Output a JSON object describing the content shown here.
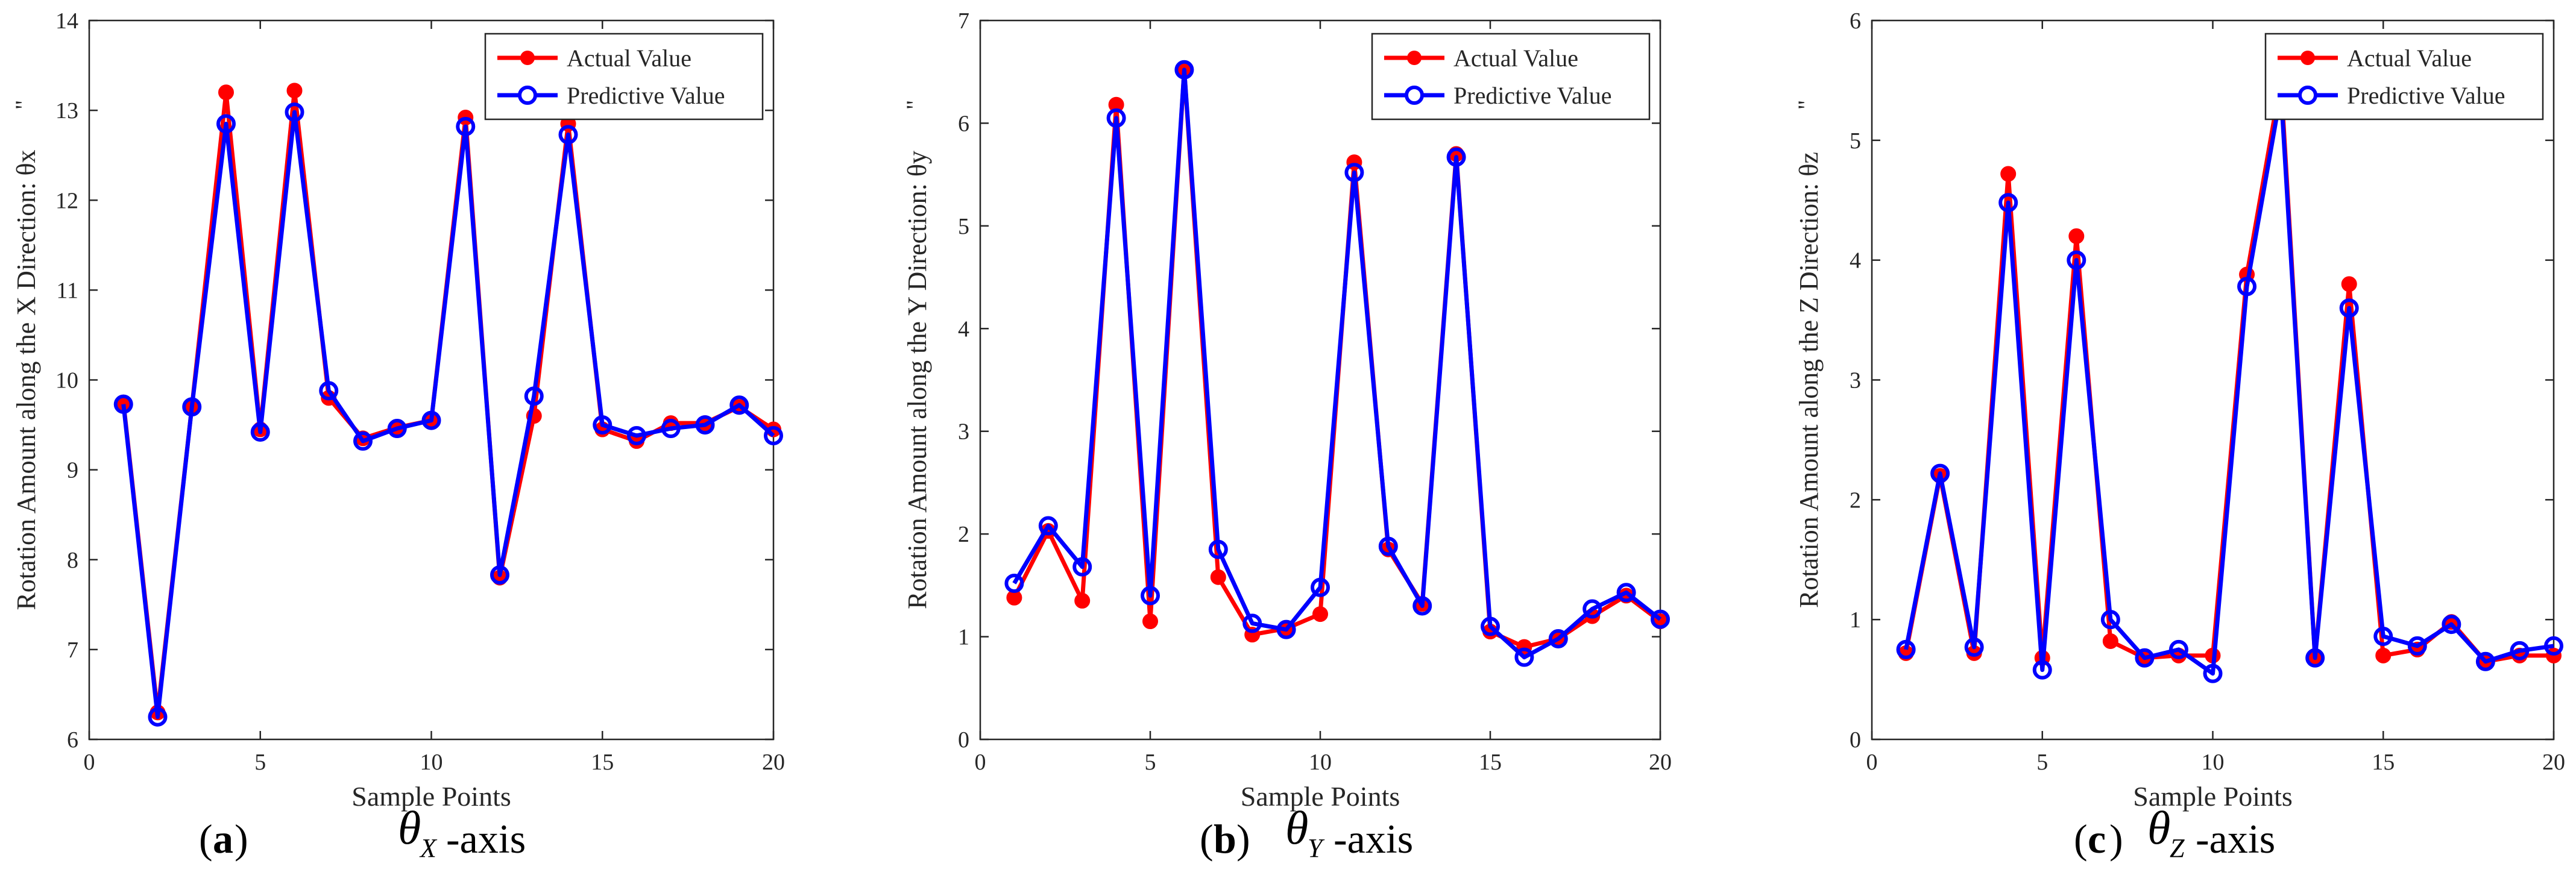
{
  "figure": {
    "panels": [
      {
        "label": "a",
        "symbol": "θ",
        "subscript": "X",
        "suffix": "-axis"
      },
      {
        "label": "b",
        "symbol": "θ",
        "subscript": "Y",
        "suffix": "-axis"
      },
      {
        "label": "c",
        "symbol": "θ",
        "subscript": "Z",
        "suffix": "-axis"
      }
    ]
  },
  "colors": {
    "actual": "#ff0000",
    "predictive": "#0000ff",
    "axis": "#262626",
    "background": "#ffffff"
  },
  "chart_data": [
    {
      "type": "line",
      "title": "",
      "xlabel": "Sample Points",
      "ylabel": "Rotation Amount along the X Direction: θx",
      "unit_mark": "\"",
      "xlim": [
        0,
        20
      ],
      "ylim": [
        6,
        14
      ],
      "xticks": [
        0,
        5,
        10,
        15,
        20
      ],
      "yticks": [
        6,
        7,
        8,
        9,
        10,
        11,
        12,
        13,
        14
      ],
      "legend_position": "top-right",
      "x": [
        1,
        2,
        3,
        4,
        5,
        6,
        7,
        8,
        9,
        10,
        11,
        12,
        13,
        14,
        15,
        16,
        17,
        18,
        19,
        20
      ],
      "series": [
        {
          "name": "Actual Value",
          "marker": "filled-circle",
          "values": [
            9.75,
            6.3,
            9.7,
            13.2,
            9.45,
            13.22,
            9.8,
            9.35,
            9.47,
            9.55,
            12.92,
            7.8,
            9.6,
            12.85,
            9.45,
            9.32,
            9.52,
            9.52,
            9.7,
            9.45
          ]
        },
        {
          "name": "Predictive Value",
          "marker": "open-circle",
          "values": [
            9.73,
            6.25,
            9.7,
            12.85,
            9.42,
            12.98,
            9.88,
            9.32,
            9.46,
            9.55,
            12.82,
            7.83,
            9.82,
            12.73,
            9.5,
            9.38,
            9.46,
            9.5,
            9.72,
            9.38
          ]
        }
      ]
    },
    {
      "type": "line",
      "title": "",
      "xlabel": "Sample Points",
      "ylabel": "Rotation Amount along the Y Direction: θy",
      "unit_mark": "\"",
      "xlim": [
        0,
        20
      ],
      "ylim": [
        0,
        7
      ],
      "xticks": [
        0,
        5,
        10,
        15,
        20
      ],
      "yticks": [
        0,
        1,
        2,
        3,
        4,
        5,
        6,
        7
      ],
      "legend_position": "top-right",
      "x": [
        1,
        2,
        3,
        4,
        5,
        6,
        7,
        8,
        9,
        10,
        11,
        12,
        13,
        14,
        15,
        16,
        17,
        18,
        19,
        20
      ],
      "series": [
        {
          "name": "Actual Value",
          "marker": "filled-circle",
          "values": [
            1.38,
            2.03,
            1.35,
            6.18,
            1.15,
            6.52,
            1.58,
            1.02,
            1.08,
            1.22,
            5.62,
            1.85,
            1.32,
            5.7,
            1.05,
            0.9,
            0.98,
            1.2,
            1.4,
            1.15
          ]
        },
        {
          "name": "Predictive Value",
          "marker": "open-circle",
          "values": [
            1.52,
            2.08,
            1.68,
            6.05,
            1.4,
            6.52,
            1.85,
            1.13,
            1.07,
            1.48,
            5.52,
            1.88,
            1.3,
            5.67,
            1.1,
            0.8,
            0.98,
            1.27,
            1.43,
            1.17
          ]
        }
      ]
    },
    {
      "type": "line",
      "title": "",
      "xlabel": "Sample Points",
      "ylabel": "Rotation Amount along the Z Direction: θz",
      "unit_mark": "\"",
      "xlim": [
        0,
        20
      ],
      "ylim": [
        0,
        6
      ],
      "xticks": [
        0,
        5,
        10,
        15,
        20
      ],
      "yticks": [
        0,
        1,
        2,
        3,
        4,
        5,
        6
      ],
      "legend_position": "top-right",
      "x": [
        1,
        2,
        3,
        4,
        5,
        6,
        7,
        8,
        9,
        10,
        11,
        12,
        13,
        14,
        15,
        16,
        17,
        18,
        19,
        20
      ],
      "series": [
        {
          "name": "Actual Value",
          "marker": "filled-circle",
          "values": [
            0.72,
            2.2,
            0.72,
            4.72,
            0.68,
            4.2,
            0.82,
            0.68,
            0.7,
            0.7,
            3.88,
            5.5,
            0.68,
            3.8,
            0.7,
            0.75,
            0.98,
            0.65,
            0.7,
            0.7
          ]
        },
        {
          "name": "Predictive Value",
          "marker": "open-circle",
          "values": [
            0.75,
            2.22,
            0.77,
            4.48,
            0.58,
            4.0,
            1.0,
            0.68,
            0.75,
            0.55,
            3.78,
            5.4,
            0.68,
            3.6,
            0.86,
            0.78,
            0.96,
            0.65,
            0.74,
            0.78
          ]
        }
      ]
    }
  ]
}
